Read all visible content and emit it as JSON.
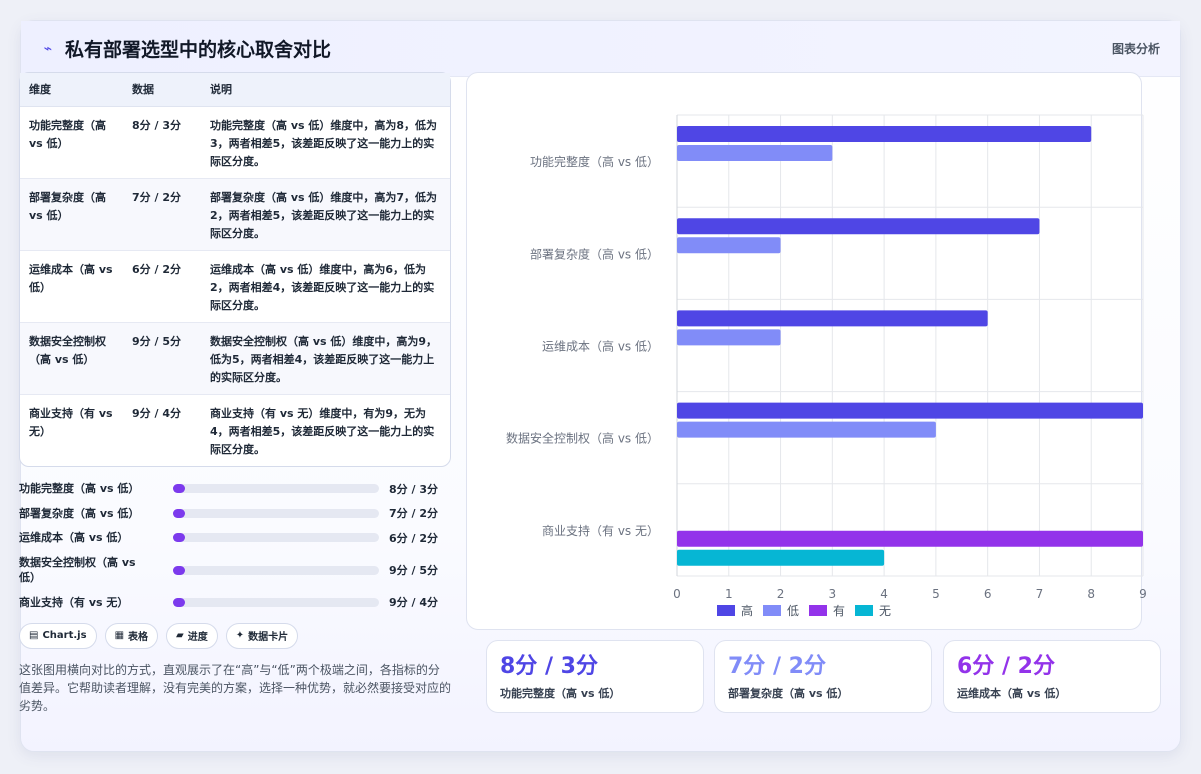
{
  "header": {
    "icon": "chart-line-icon",
    "title": "私有部署选型中的核心取舍对比",
    "tag": "图表分析"
  },
  "table": {
    "headers": [
      "维度",
      "数据",
      "说明"
    ],
    "rows": [
      {
        "dim": "功能完整度（高 vs 低）",
        "data": "8分 / 3分",
        "desc": "功能完整度（高 vs 低）维度中，高为8，低为3，两者相差5，该差距反映了这一能力上的实际区分度。"
      },
      {
        "dim": "部署复杂度（高 vs 低）",
        "data": "7分 / 2分",
        "desc": "部署复杂度（高 vs 低）维度中，高为7，低为2，两者相差5，该差距反映了这一能力上的实际区分度。"
      },
      {
        "dim": "运维成本（高 vs 低）",
        "data": "6分 / 2分",
        "desc": "运维成本（高 vs 低）维度中，高为6，低为2，两者相差4，该差距反映了这一能力上的实际区分度。"
      },
      {
        "dim": "数据安全控制权（高 vs 低）",
        "data": "9分 / 5分",
        "desc": "数据安全控制权（高 vs 低）维度中，高为9，低为5，两者相差4，该差距反映了这一能力上的实际区分度。"
      },
      {
        "dim": "商业支持（有 vs 无）",
        "data": "9分 / 4分",
        "desc": "商业支持（有 vs 无）维度中，有为9，无为4，两者相差5，该差距反映了这一能力上的实际区分度。"
      }
    ]
  },
  "progress": [
    {
      "label": "功能完整度（高 vs 低）",
      "value": "8分 / 3分",
      "fill_pct": 6
    },
    {
      "label": "部署复杂度（高 vs 低）",
      "value": "7分 / 2分",
      "fill_pct": 6
    },
    {
      "label": "运维成本（高 vs 低）",
      "value": "6分 / 2分",
      "fill_pct": 6
    },
    {
      "label": "数据安全控制权（高 vs 低）",
      "value": "9分 / 5分",
      "fill_pct": 6
    },
    {
      "label": "商业支持（有 vs 无）",
      "value": "9分 / 4分",
      "fill_pct": 6
    }
  ],
  "chips": [
    {
      "icon": "▤",
      "label": "Chart.js"
    },
    {
      "icon": "▦",
      "label": "表格"
    },
    {
      "icon": "▰",
      "label": "进度"
    },
    {
      "icon": "✦",
      "label": "数据卡片"
    }
  ],
  "summary": "这张图用横向对比的方式，直观展示了在“高”与“低”两个极端之间，各指标的分值差异。它帮助读者理解，没有完美的方案，选择一种优势，就必然要接受对应的劣势。",
  "stats": [
    {
      "value": "8分 / 3分",
      "label": "功能完整度（高 vs 低）",
      "color": "#4f46e5"
    },
    {
      "value": "7分 / 2分",
      "label": "部署复杂度（高 vs 低）",
      "color": "#818cf8"
    },
    {
      "value": "6分 / 2分",
      "label": "运维成本（高 vs 低）",
      "color": "#9333ea"
    }
  ],
  "colors": {
    "high": "#4f46e5",
    "low": "#818cf8",
    "yes": "#9333ea",
    "no": "#06b6d4"
  },
  "chart_data": {
    "type": "bar",
    "orientation": "horizontal",
    "categories": [
      "功能完整度（高 vs 低）",
      "部署复杂度（高 vs 低）",
      "运维成本（高 vs 低）",
      "数据安全控制权（高 vs 低）",
      "商业支持（有 vs 无）"
    ],
    "series": [
      {
        "name": "高",
        "color": "#4f46e5",
        "values": [
          8,
          7,
          6,
          9,
          null
        ]
      },
      {
        "name": "低",
        "color": "#818cf8",
        "values": [
          3,
          2,
          2,
          5,
          null
        ]
      },
      {
        "name": "有",
        "color": "#9333ea",
        "values": [
          null,
          null,
          null,
          null,
          9
        ]
      },
      {
        "name": "无",
        "color": "#06b6d4",
        "values": [
          null,
          null,
          null,
          null,
          4
        ]
      }
    ],
    "xlim": [
      0,
      9
    ],
    "xticks": [
      "0",
      "1",
      "2",
      "3",
      "4",
      "5",
      "6",
      "7",
      "8",
      "9"
    ],
    "grid": true,
    "legend": "bottom"
  }
}
